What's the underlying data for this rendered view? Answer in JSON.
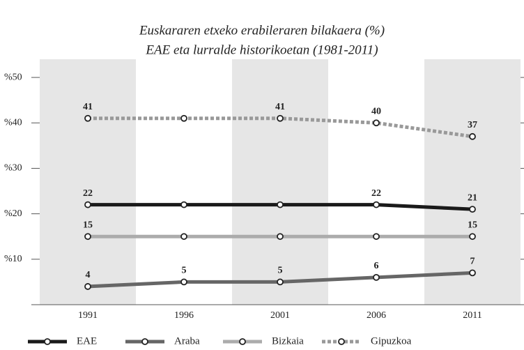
{
  "chart_data": {
    "type": "line",
    "title": "Euskararen etxeko erabileraren bilakaera (%)",
    "subtitle": "EAE eta lurralde historikoetan (1981-2011)",
    "categories": [
      "1991",
      "1996",
      "2001",
      "2006",
      "2011"
    ],
    "series": [
      {
        "name": "EAE",
        "color": "#1a1a1a",
        "dashed": false,
        "values": [
          22,
          22,
          22,
          22,
          21
        ],
        "value_labels": [
          "22",
          null,
          null,
          "22",
          "21"
        ]
      },
      {
        "name": "Araba",
        "color": "#666666",
        "dashed": false,
        "values": [
          4,
          5,
          5,
          6,
          7
        ],
        "value_labels": [
          "4",
          "5",
          "5",
          "6",
          "7"
        ]
      },
      {
        "name": "Bizkaia",
        "color": "#acacac",
        "dashed": false,
        "values": [
          15,
          15,
          15,
          15,
          15
        ],
        "value_labels": [
          "15",
          null,
          null,
          null,
          "15"
        ]
      },
      {
        "name": "Gipuzkoa",
        "color": "#999999",
        "dashed": true,
        "values": [
          41,
          41,
          41,
          40,
          37
        ],
        "value_labels": [
          "41",
          null,
          "41",
          "40",
          "37"
        ]
      }
    ],
    "ylim": [
      0,
      54
    ],
    "yticks": [
      {
        "value": 10,
        "label": "%10"
      },
      {
        "value": 20,
        "label": "%20"
      },
      {
        "value": 30,
        "label": "%30"
      },
      {
        "value": 40,
        "label": "%40"
      },
      {
        "value": 50,
        "label": "%50"
      }
    ],
    "shaded_categories": [
      0,
      2,
      4
    ],
    "legend": "bottom"
  }
}
